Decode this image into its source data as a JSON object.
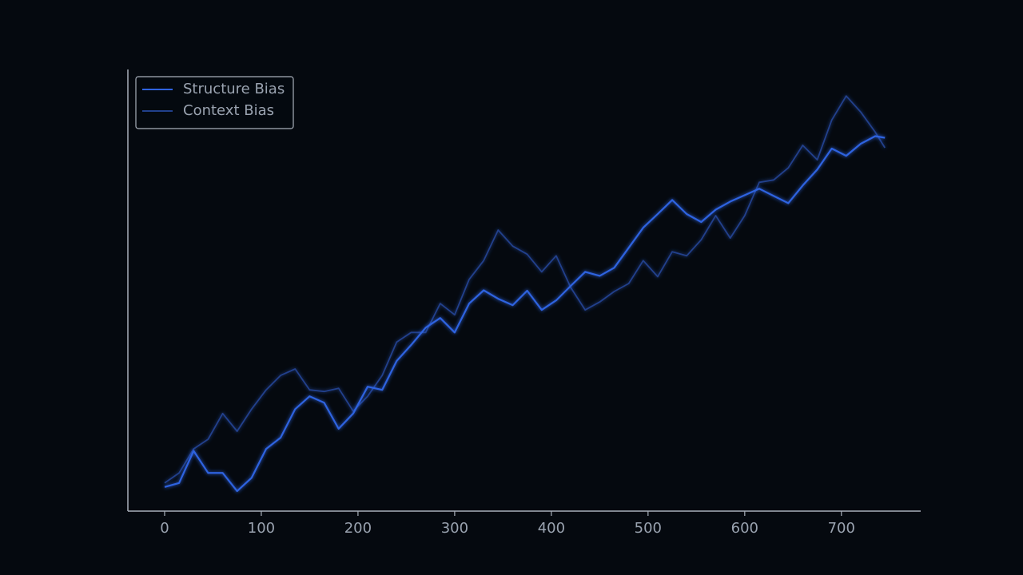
{
  "chart_data": {
    "type": "line",
    "x": [
      0,
      15,
      30,
      45,
      60,
      75,
      90,
      105,
      120,
      135,
      150,
      165,
      180,
      195,
      210,
      225,
      240,
      255,
      270,
      285,
      300,
      315,
      330,
      345,
      360,
      375,
      390,
      405,
      420,
      435,
      450,
      465,
      480,
      495,
      510,
      525,
      540,
      555,
      570,
      585,
      600,
      615,
      630,
      645,
      660,
      675,
      690,
      705,
      720,
      735,
      745
    ],
    "series": [
      {
        "name": "Structure Bias",
        "color": "#2f63e0",
        "values": [
          6,
          7,
          15,
          9.5,
          9.5,
          5,
          8.3,
          15.5,
          18.3,
          25.4,
          28.6,
          27,
          20.5,
          24.3,
          31,
          30.2,
          37.4,
          41.4,
          45.7,
          48.1,
          44.5,
          51.7,
          55,
          52.9,
          51.3,
          54.9,
          50.1,
          52.5,
          56.1,
          59.6,
          58.6,
          60.6,
          65.6,
          70.6,
          74,
          77.5,
          74,
          72,
          75.1,
          77.1,
          78.7,
          80.3,
          78.5,
          76.7,
          81.1,
          85.1,
          90.3,
          88.5,
          91.5,
          93.4,
          93
        ]
      },
      {
        "name": "Context Bias",
        "color": "#21408c",
        "values": [
          7,
          9.5,
          15.5,
          17.9,
          24.3,
          19.9,
          25.4,
          30.2,
          33.8,
          35.4,
          30.2,
          29.8,
          30.6,
          24.9,
          28.6,
          33.8,
          42.1,
          44.5,
          44.5,
          51.7,
          48.9,
          57.7,
          62.4,
          70,
          66,
          64,
          59.6,
          63.6,
          55.7,
          50.1,
          52.1,
          54.7,
          56.7,
          62.4,
          58.4,
          64.6,
          63.6,
          67.6,
          73.6,
          68,
          73.6,
          81.9,
          82.5,
          85.5,
          91.1,
          87.5,
          97.4,
          103.4,
          99.4,
          94.4,
          90.5
        ]
      }
    ],
    "xlim": [
      -38,
      782
    ],
    "xticks": [
      0,
      100,
      200,
      300,
      400,
      500,
      600,
      700
    ],
    "ylim": [
      0,
      110
    ],
    "legend": "upper left",
    "grid": false
  }
}
